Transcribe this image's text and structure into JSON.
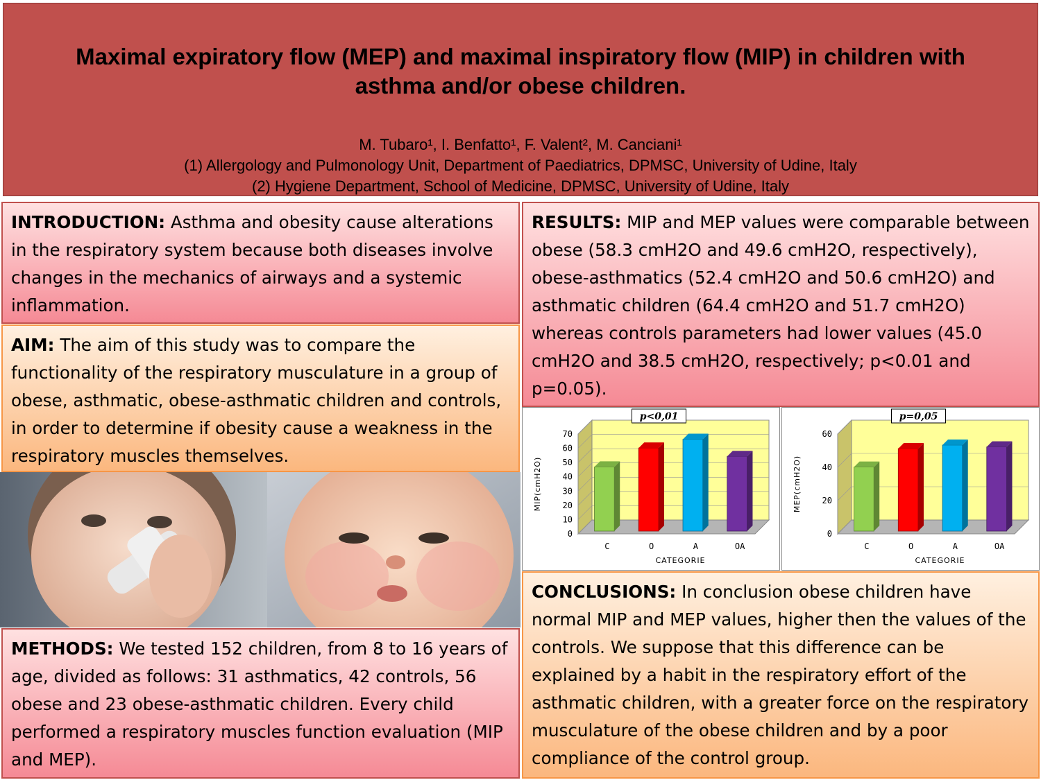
{
  "header": {
    "title_line1": "Maximal expiratory flow (MEP) and maximal inspiratory flow (MIP) in children with",
    "title_line2": "asthma and/or obese children.",
    "authors": "M. Tubaro¹, I. Benfatto¹, F. Valent², M. Canciani¹",
    "affil1": "(1) Allergology and Pulmonology Unit, Department of Paediatrics, DPMSC, University of Udine, Italy",
    "affil2": "(2) Hygiene Department, School of Medicine, DPMSC, University of Udine, Italy"
  },
  "introduction": {
    "heading": "INTRODUCTION:",
    "text": " Asthma and obesity cause alterations in the respiratory system because both diseases involve changes in the mechanics of airways and a systemic inflammation."
  },
  "aim": {
    "heading": "AIM:",
    "text": " The aim of this study was to compare the functionality of the respiratory musculature in a group of obese, asthmatic, obese-asthmatic children and controls, in order to determine if obesity cause a weakness in the respiratory muscles themselves."
  },
  "methods": {
    "heading": "METHODS:",
    "text": " We tested 152 children, from 8 to 16 years of age, divided as follows: 31 asthmatics, 42 controls, 56 obese and 23 obese-asthmatic children. Every child performed a respiratory muscles function evaluation (MIP and MEP)."
  },
  "results": {
    "heading": "RESULTS:",
    "text": " MIP and MEP values were comparable between obese (58.3 cmH2O and 49.6 cmH2O, respectively), obese-asthmatics (52.4 cmH2O and 50.6 cmH2O) and asthmatic children (64.4 cmH2O and 51.7 cmH2O) whereas controls parameters had lower values (45.0 cmH2O and 38.5 cmH2O, respectively; p<0.01 and p=0.05)."
  },
  "conclusions": {
    "heading": "CONCLUSIONS:",
    "text": " In conclusion obese children have normal MIP and MEP values, higher then the values of the controls. We suppose that this difference can be explained by a habit in the respiratory effort of the asthmatic children, with a greater force on the respiratory musculature of the obese children and by a poor compliance of the control group."
  },
  "colors": {
    "header": "#c0504d",
    "bar_C": "#92d050",
    "bar_O": "#ff0000",
    "bar_A": "#00b0f0",
    "bar_OA": "#7030a0",
    "plot_bg": "#ffff99"
  },
  "chart_data": [
    {
      "type": "bar",
      "categories": [
        "C",
        "O",
        "A",
        "OA"
      ],
      "values": [
        45.0,
        58.3,
        64.4,
        52.4
      ],
      "ylabel": "MIP(cmH2O)",
      "xlabel": "CATEGORIE",
      "ylim": [
        0,
        70
      ],
      "yticks": [
        0,
        10,
        20,
        30,
        40,
        50,
        60,
        70
      ],
      "annotation": "p<0,01",
      "grid": true
    },
    {
      "type": "bar",
      "categories": [
        "C",
        "O",
        "A",
        "OA"
      ],
      "values": [
        38.5,
        49.6,
        51.7,
        50.6
      ],
      "ylabel": "MEP(cmH2O)",
      "xlabel": "CATEGORIE",
      "ylim": [
        0,
        60
      ],
      "yticks": [
        0,
        20,
        40,
        60
      ],
      "annotation": "p=0,05",
      "grid": true
    }
  ]
}
